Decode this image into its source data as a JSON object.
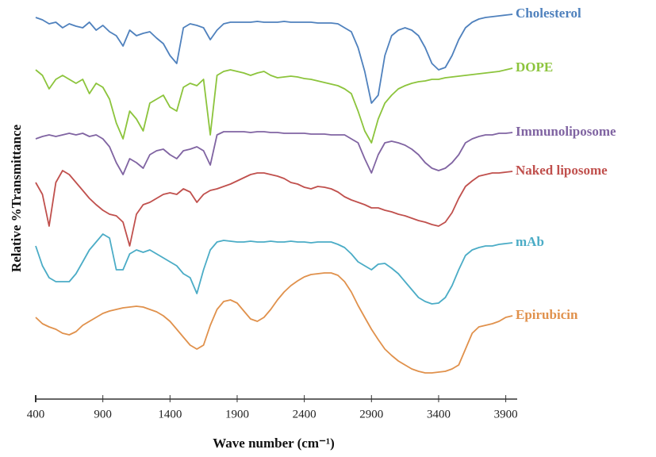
{
  "chart_data": {
    "type": "line",
    "x_label": "Wave number (cm⁻¹)",
    "y_label": "Relative %Transmittance",
    "x": [
      400,
      450,
      500,
      550,
      600,
      650,
      700,
      750,
      800,
      850,
      900,
      950,
      1000,
      1050,
      1100,
      1150,
      1200,
      1250,
      1300,
      1350,
      1400,
      1450,
      1500,
      1550,
      1600,
      1650,
      1700,
      1750,
      1800,
      1850,
      1900,
      1950,
      2000,
      2050,
      2100,
      2150,
      2200,
      2250,
      2300,
      2350,
      2400,
      2450,
      2500,
      2550,
      2600,
      2650,
      2700,
      2750,
      2800,
      2850,
      2900,
      2950,
      3000,
      3050,
      3100,
      3150,
      3200,
      3250,
      3300,
      3350,
      3400,
      3450,
      3500,
      3550,
      3600,
      3650,
      3700,
      3750,
      3800,
      3850,
      3900,
      3950
    ],
    "xlim": [
      400,
      3985
    ],
    "xticks": [
      400,
      900,
      1400,
      1900,
      2400,
      2900,
      3400,
      3900
    ],
    "ylim": [
      0,
      100
    ],
    "series": [
      {
        "name": "Cholesterol",
        "color": "#4f81bd",
        "values": [
          95.6,
          95,
          94,
          94.4,
          93,
          94,
          93.4,
          93,
          94.4,
          92.4,
          93.6,
          92,
          91,
          88.4,
          92.4,
          91,
          91.6,
          92,
          90.4,
          89,
          86,
          84,
          93,
          94,
          93.6,
          93,
          90,
          92.4,
          94,
          94.4,
          94.4,
          94.4,
          94.4,
          94.6,
          94.4,
          94.4,
          94.4,
          94.6,
          94.4,
          94.4,
          94.4,
          94.4,
          94.2,
          94.2,
          94.2,
          94,
          93,
          92,
          88,
          82,
          74,
          76,
          86,
          91,
          92.4,
          93,
          92.4,
          91,
          88,
          84,
          82.4,
          83,
          86,
          90,
          93,
          94.4,
          95.2,
          95.6,
          95.8,
          96,
          96.2,
          96.4
        ]
      },
      {
        "name": "DOPE",
        "color": "#8cc43c",
        "values": [
          82.4,
          81,
          77.6,
          80,
          81,
          80,
          79,
          80,
          76.4,
          79,
          78,
          75,
          69,
          65,
          72,
          70,
          67,
          74,
          75,
          76,
          73,
          72,
          78,
          79,
          78.4,
          80,
          66,
          81,
          82,
          82.4,
          82,
          81.6,
          81,
          81.6,
          82,
          81,
          80.4,
          80.6,
          80.8,
          80.6,
          80.2,
          80,
          79.6,
          79.2,
          78.8,
          78.4,
          77.6,
          76.4,
          72,
          67,
          64,
          70,
          74,
          76,
          77.6,
          78.4,
          79,
          79.4,
          79.6,
          80,
          80,
          80.4,
          80.6,
          80.8,
          81,
          81.2,
          81.4,
          81.6,
          81.8,
          82,
          82.4,
          82.8
        ]
      },
      {
        "name": "Immunoliposome",
        "color": "#8064a2",
        "values": [
          65,
          65.6,
          66,
          65.6,
          66,
          66.4,
          66,
          66.4,
          65.6,
          66,
          65,
          63,
          59,
          56,
          60,
          59,
          57.6,
          61,
          62,
          62.4,
          61,
          60,
          62,
          62.4,
          63,
          62,
          58.4,
          66,
          66.8,
          66.8,
          66.8,
          66.8,
          66.6,
          66.8,
          66.8,
          66.6,
          66.6,
          66.4,
          66.4,
          66.4,
          66.4,
          66.2,
          66.2,
          66.2,
          66,
          66,
          66,
          65,
          64,
          60,
          56.4,
          61,
          64,
          64.4,
          64,
          63.4,
          62.4,
          61,
          59,
          57.6,
          57,
          57.6,
          59,
          61,
          64,
          65,
          65.6,
          66,
          66,
          66.4,
          66.4,
          66.6
        ]
      },
      {
        "name": "Naked liposome",
        "color": "#c0504d",
        "values": [
          54,
          51,
          43,
          54,
          57,
          56,
          54,
          52,
          50,
          48.4,
          47,
          46,
          45.6,
          44,
          38,
          46,
          48.4,
          49,
          50,
          51,
          51.4,
          51,
          52.4,
          51.6,
          49,
          51,
          52,
          52.4,
          53,
          53.6,
          54.4,
          55.2,
          56,
          56.4,
          56.4,
          56,
          55.6,
          55,
          54,
          53.6,
          52.8,
          52.4,
          53,
          52.8,
          52.4,
          51.6,
          50.4,
          49.6,
          49,
          48.4,
          47.6,
          47.6,
          47,
          46.6,
          46,
          45.6,
          45,
          44.4,
          44,
          43.4,
          43,
          44,
          46.4,
          50,
          53,
          54.4,
          55.6,
          56,
          56.4,
          56.4,
          56.6,
          56.8
        ]
      },
      {
        "name": "mAb",
        "color": "#4bacc6",
        "values": [
          38,
          33,
          30,
          29,
          29,
          29,
          31,
          34,
          37,
          39,
          41,
          40,
          32,
          32,
          36,
          37,
          36.4,
          37,
          36,
          35,
          34,
          33,
          31,
          30,
          26,
          32,
          37,
          39,
          39.4,
          39.2,
          39,
          39,
          39.2,
          39,
          39,
          39.2,
          39,
          39,
          39.2,
          39,
          39,
          38.8,
          39,
          39,
          39,
          38.4,
          37.6,
          36,
          34,
          33,
          32,
          33.4,
          33.6,
          32.4,
          31,
          29,
          27,
          25,
          24,
          23.4,
          23.6,
          25,
          28,
          32,
          35.6,
          37,
          37.6,
          38,
          38,
          38.4,
          38.6,
          38.8
        ]
      },
      {
        "name": "Epirubicin",
        "color": "#e0914c",
        "values": [
          20,
          18.4,
          17.6,
          17,
          16,
          15.6,
          16.4,
          18,
          19,
          20,
          21,
          21.6,
          22,
          22.4,
          22.6,
          22.8,
          22.6,
          22,
          21.4,
          20.4,
          19,
          17,
          15,
          13,
          12,
          13,
          18,
          22,
          24,
          24.4,
          23.6,
          21.6,
          19.6,
          19,
          20,
          22,
          24.4,
          26.4,
          28,
          29.2,
          30.2,
          30.8,
          31,
          31.2,
          31.2,
          30.6,
          29,
          26.4,
          23,
          20,
          17,
          14.4,
          12,
          10.4,
          9,
          8,
          7,
          6.4,
          6,
          6,
          6.2,
          6.4,
          7,
          8,
          12,
          16,
          17.6,
          18,
          18.4,
          19,
          20,
          20.4
        ]
      }
    ]
  }
}
